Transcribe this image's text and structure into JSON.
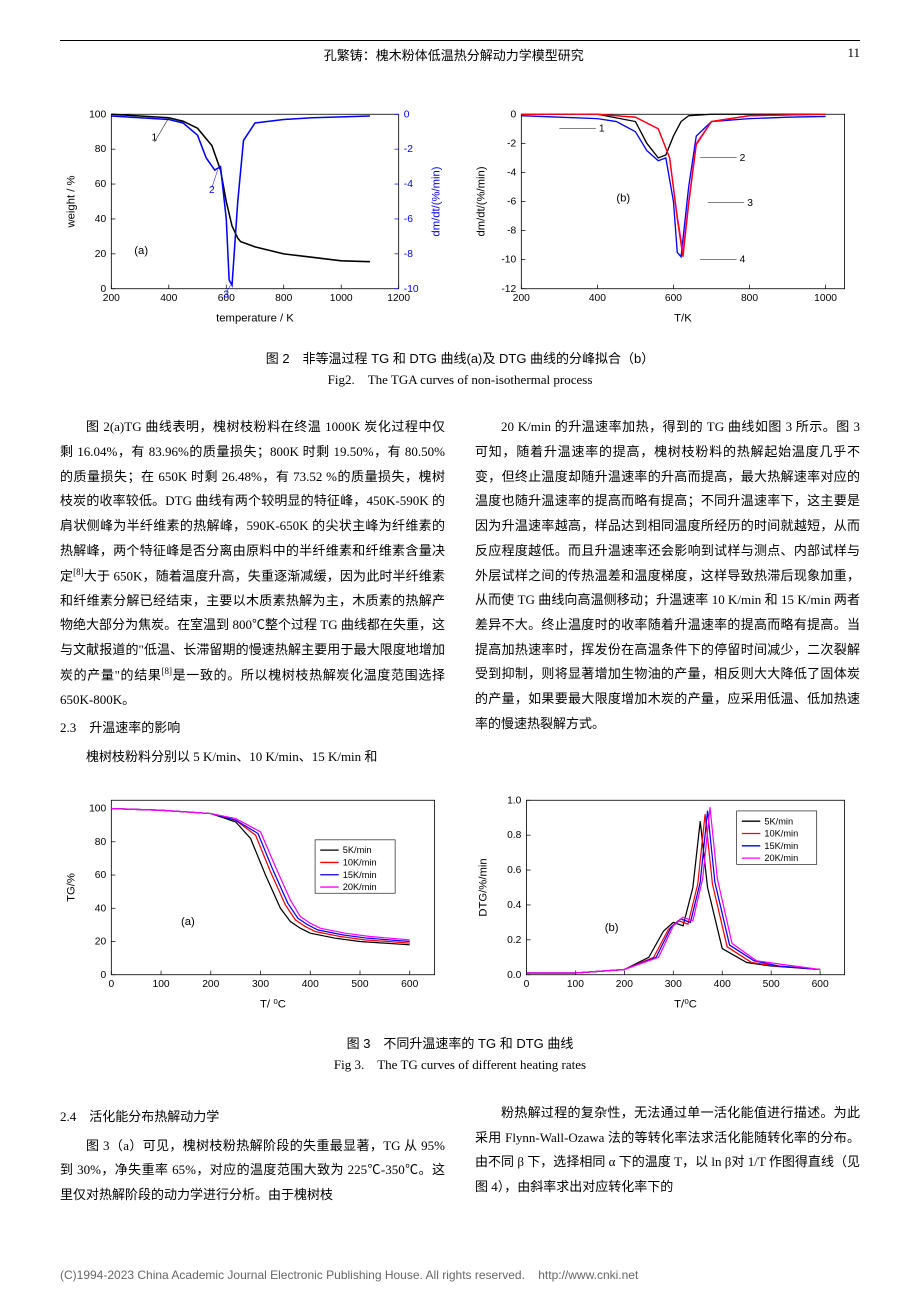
{
  "header": {
    "author_title": "孔繁铸：槐木粉体低温热分解动力学模型研究",
    "page_num": "11"
  },
  "fig2": {
    "caption_cn": "图 2　非等温过程 TG 和 DTG 曲线(a)及 DTG 曲线的分峰拟合（b）",
    "caption_en": "Fig2.　The TGA curves of non-isothermal process",
    "chart_a": {
      "type": "line",
      "xlabel": "temperature / K",
      "ylabel_left": "weight / %",
      "ylabel_right": "dm/dt/(%/min)",
      "xlim": [
        200,
        1200
      ],
      "ylim_left": [
        0,
        100
      ],
      "ylim_right": [
        -10,
        0
      ],
      "xticks": [
        200,
        400,
        600,
        800,
        1000,
        1200
      ],
      "yticks_left": [
        0,
        20,
        40,
        60,
        80,
        100
      ],
      "yticks_right": [
        -10,
        -8,
        -6,
        -4,
        -2,
        0
      ],
      "tg_curve": {
        "color": "#000000",
        "label": "1",
        "x": [
          200,
          300,
          400,
          450,
          500,
          550,
          580,
          600,
          620,
          640,
          650,
          700,
          800,
          900,
          1000,
          1100
        ],
        "y": [
          100,
          99,
          98,
          96,
          92,
          82,
          68,
          50,
          36,
          29,
          27,
          24,
          20,
          18,
          16,
          15.5
        ]
      },
      "dtg_curve": {
        "color": "#0000ff",
        "label_2": "2",
        "label_3": "3",
        "x": [
          200,
          300,
          400,
          450,
          500,
          530,
          560,
          580,
          600,
          610,
          620,
          640,
          660,
          700,
          800,
          900,
          1000,
          1100
        ],
        "y": [
          -0.1,
          -0.2,
          -0.3,
          -0.5,
          -1.2,
          -2.5,
          -3.2,
          -3.0,
          -6.0,
          -9.5,
          -9.8,
          -5.0,
          -1.5,
          -0.5,
          -0.3,
          -0.2,
          -0.15,
          -0.1
        ]
      },
      "panel_label": "(a)",
      "label_fontsize": 11,
      "tick_fontsize": 10,
      "background_color": "#ffffff",
      "frame_color": "#000000"
    },
    "chart_b": {
      "type": "line",
      "xlabel": "T/K",
      "ylabel": "dm/dt/(%/min)",
      "xlim": [
        200,
        1050
      ],
      "ylim": [
        -12,
        0
      ],
      "xticks": [
        200,
        400,
        600,
        800,
        1000
      ],
      "yticks": [
        -12,
        -10,
        -8,
        -6,
        -4,
        -2,
        0
      ],
      "curves": [
        {
          "label": "1",
          "color": "#0000ff",
          "x": [
            200,
            300,
            400,
            450,
            500,
            530,
            560,
            580,
            600,
            610,
            620,
            640,
            660,
            700,
            800,
            900,
            1000
          ],
          "y": [
            -0.1,
            -0.2,
            -0.3,
            -0.5,
            -1.2,
            -2.5,
            -3.2,
            -3.0,
            -6.0,
            -9.5,
            -9.8,
            -5.0,
            -1.5,
            -0.5,
            -0.3,
            -0.2,
            -0.15
          ]
        },
        {
          "label": "2",
          "color": "#000000",
          "x": [
            200,
            400,
            500,
            530,
            560,
            580,
            600,
            620,
            640,
            700,
            1000
          ],
          "y": [
            0,
            0,
            -0.5,
            -2.0,
            -3.0,
            -2.8,
            -1.5,
            -0.5,
            -0.1,
            0,
            0
          ]
        },
        {
          "label": "3",
          "color": "#ff00ff",
          "x": [
            200,
            400,
            500,
            560,
            590,
            610,
            625,
            640,
            660,
            700,
            800,
            1000
          ],
          "y": [
            0,
            0,
            -0.2,
            -1.0,
            -3.0,
            -7.0,
            -9.5,
            -6.0,
            -2.0,
            -0.5,
            -0.1,
            0
          ]
        },
        {
          "label": "4",
          "color": "#ff0000",
          "x": [
            200,
            400,
            500,
            560,
            590,
            610,
            625,
            640,
            660,
            700,
            800,
            1000
          ],
          "y": [
            0,
            0,
            -0.2,
            -1.0,
            -3.0,
            -7.2,
            -9.8,
            -6.2,
            -2.1,
            -0.5,
            -0.1,
            0
          ]
        }
      ],
      "panel_label": "(b)",
      "label_fontsize": 11,
      "tick_fontsize": 10,
      "background_color": "#ffffff",
      "frame_color": "#000000"
    }
  },
  "body1": {
    "left": {
      "p1": "图 2(a)TG 曲线表明，槐树枝粉料在终温 1000K 炭化过程中仅剩 16.04%，有 83.96%的质量损失；800K 时剩 19.50%，有 80.50%的质量损失；在 650K 时剩 26.48%，有 73.52 %的质量损失，槐树枝炭的收率较低。DTG 曲线有两个较明显的特征峰，450K-590K 的肩状侧峰为半纤维素的热解峰，590K-650K 的尖状主峰为纤维素的热解峰，两个特征峰是否分离由原料中的半纤维素和纤维素含量决定",
      "p1_ref": "[8]",
      "p1_cont": "大于 650K，随着温度升高，失重逐渐减缓，因为此时半纤维素和纤维素分解已经结束，主要以木质素热解为主，木质素的热解产物绝大部分为焦炭。在室温到 800℃整个过程 TG 曲线都在失重，这与文献报道的\"低温、长滞留期的慢速热解主要用于最大限度地增加炭的产量\"的结果",
      "p1_ref2": "[8]",
      "p1_end": "是一致的。所以槐树枝热解炭化温度范围选择 650K-800K。",
      "section": "2.3　升温速率的影响",
      "p2": "槐树枝粉料分别以 5 K/min、10 K/min、15 K/min 和"
    },
    "right": {
      "p1": "20 K/min 的升温速率加热，得到的 TG 曲线如图 3 所示。图 3 可知，随着升温速率的提高，槐树枝粉料的热解起始温度几乎不变，但终止温度却随升温速率的升高而提高，最大热解速率对应的温度也随升温速率的提高而略有提高；不同升温速率下，这主要是因为升温速率越高，样品达到相同温度所经历的时间就越短，从而反应程度越低。而且升温速率还会影响到试样与测点、内部试样与外层试样之间的传热温差和温度梯度，这样导致热滞后现象加重，从而使 TG 曲线向高温侧移动；升温速率 10 K/min 和 15 K/min 两者差异不大。终止温度时的收率随着升温速率的提高而略有提高。当提高加热速率时，挥发份在高温条件下的停留时间减少，二次裂解受到抑制，则将显著增加生物油的产量，相反则大大降低了固体炭的产量，如果要最大限度增加木炭的产量，应采用低温、低加热速率的慢速热裂解方式。"
    }
  },
  "fig3": {
    "caption_cn": "图 3　不同升温速率的 TG 和 DTG 曲线",
    "caption_en": "Fig 3.　The TG curves of different heating rates",
    "chart_a": {
      "type": "line",
      "xlabel": "T/ ⁰C",
      "ylabel": "TG/%",
      "xlim": [
        0,
        650
      ],
      "ylim": [
        0,
        105
      ],
      "xticks": [
        0,
        100,
        200,
        300,
        400,
        500,
        600
      ],
      "yticks": [
        0,
        20,
        40,
        60,
        80,
        100
      ],
      "panel_label": "(a)",
      "legend_items": [
        "5K/min",
        "10K/min",
        "15K/min",
        "20K/min"
      ],
      "legend_colors": [
        "#000000",
        "#ff0000",
        "#0000ff",
        "#ff00ff"
      ],
      "curves": [
        {
          "color": "#000000",
          "x": [
            0,
            100,
            200,
            250,
            280,
            310,
            340,
            360,
            380,
            400,
            450,
            500,
            600
          ],
          "y": [
            100,
            99,
            97,
            92,
            82,
            60,
            40,
            32,
            28,
            25,
            22,
            20,
            18
          ]
        },
        {
          "color": "#ff0000",
          "x": [
            0,
            100,
            200,
            250,
            290,
            320,
            350,
            370,
            390,
            410,
            460,
            510,
            600
          ],
          "y": [
            100,
            99,
            97,
            93,
            84,
            62,
            42,
            33,
            29,
            26,
            23,
            21,
            19
          ]
        },
        {
          "color": "#0000ff",
          "x": [
            0,
            100,
            200,
            250,
            295,
            325,
            355,
            375,
            395,
            415,
            465,
            515,
            600
          ],
          "y": [
            100,
            99,
            97,
            93,
            85,
            63,
            43,
            34,
            30,
            27,
            24,
            22,
            20
          ]
        },
        {
          "color": "#ff00ff",
          "x": [
            0,
            100,
            200,
            250,
            300,
            330,
            360,
            380,
            400,
            420,
            470,
            520,
            600
          ],
          "y": [
            100,
            99,
            97,
            94,
            86,
            65,
            45,
            35,
            31,
            28,
            25,
            23,
            21
          ]
        }
      ]
    },
    "chart_b": {
      "type": "line",
      "xlabel": "T/⁰C",
      "ylabel": "DTG/%/min",
      "xlim": [
        0,
        650
      ],
      "ylim": [
        0,
        1.0
      ],
      "xticks": [
        0,
        100,
        200,
        300,
        400,
        500,
        600
      ],
      "yticks": [
        0.0,
        0.2,
        0.4,
        0.6,
        0.8,
        1.0
      ],
      "panel_label": "(b)",
      "legend_items": [
        "5K/min",
        "10K/min",
        "15K/min",
        "20K/min"
      ],
      "legend_colors": [
        "#000000",
        "#ff0000",
        "#0000ff",
        "#ff00ff"
      ],
      "curves": [
        {
          "color": "#000000",
          "x": [
            0,
            100,
            200,
            250,
            280,
            300,
            320,
            340,
            355,
            370,
            400,
            450,
            500,
            600
          ],
          "y": [
            0.01,
            0.01,
            0.03,
            0.1,
            0.25,
            0.3,
            0.28,
            0.5,
            0.88,
            0.5,
            0.15,
            0.07,
            0.05,
            0.03
          ]
        },
        {
          "color": "#ff0000",
          "x": [
            0,
            100,
            200,
            260,
            290,
            310,
            330,
            350,
            365,
            380,
            410,
            460,
            510,
            600
          ],
          "y": [
            0.01,
            0.01,
            0.03,
            0.1,
            0.26,
            0.31,
            0.29,
            0.52,
            0.92,
            0.52,
            0.16,
            0.07,
            0.05,
            0.03
          ]
        },
        {
          "color": "#0000ff",
          "x": [
            0,
            100,
            200,
            265,
            295,
            315,
            335,
            355,
            370,
            385,
            415,
            465,
            515,
            600
          ],
          "y": [
            0.01,
            0.01,
            0.03,
            0.1,
            0.27,
            0.32,
            0.3,
            0.53,
            0.94,
            0.53,
            0.17,
            0.08,
            0.05,
            0.03
          ]
        },
        {
          "color": "#ff00ff",
          "x": [
            0,
            100,
            200,
            270,
            300,
            320,
            340,
            360,
            375,
            390,
            420,
            470,
            520,
            600
          ],
          "y": [
            0.01,
            0.01,
            0.03,
            0.1,
            0.28,
            0.33,
            0.31,
            0.55,
            0.96,
            0.55,
            0.18,
            0.08,
            0.06,
            0.03
          ]
        }
      ]
    }
  },
  "body2": {
    "left": {
      "section": "2.4　活化能分布热解动力学",
      "p1": "图 3（a）可见，槐树枝粉热解阶段的失重最显著，TG 从 95%到 30%，净失重率 65%，对应的温度范围大致为 225℃-350℃。这里仅对热解阶段的动力学进行分析。由于槐树枝"
    },
    "right": {
      "p1": "粉热解过程的复杂性，无法通过单一活化能值进行描述。为此采用 Flynn-Wall-Ozawa 法的等转化率法求活化能随转化率的分布。由不同 β 下，选择相同 α 下的温度 T，以 ln β对 1/T 作图得直线（见图 4），由斜率求出对应转化率下的"
    }
  },
  "footer": {
    "copyright": "(C)1994-2023 China Academic Journal Electronic Publishing House. All rights reserved.",
    "url": "http://www.cnki.net"
  }
}
